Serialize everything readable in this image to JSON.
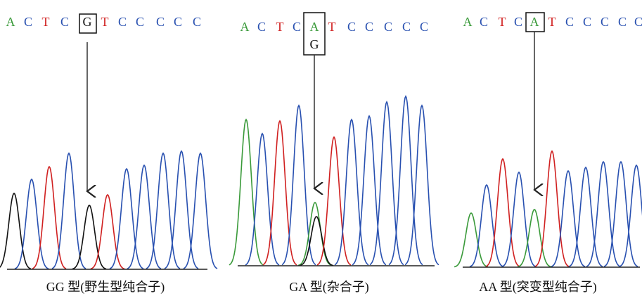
{
  "panels": [
    {
      "bases": [
        "A",
        "C",
        "T",
        "C",
        "G",
        "T",
        "C",
        "C",
        "C",
        "C",
        "C"
      ],
      "caption": "GG 型(野生型纯合子)"
    },
    {
      "bases": [
        "A",
        "C",
        "T",
        "C",
        "A",
        "T",
        "C",
        "C",
        "C",
        "C",
        "C"
      ],
      "secondary_base": "G",
      "caption": "GA 型(杂合子)"
    },
    {
      "bases": [
        "A",
        "C",
        "T",
        "C",
        "A",
        "T",
        "C",
        "C",
        "C",
        "C",
        "C"
      ],
      "caption": "AA 型(突变型纯合子)"
    }
  ]
}
